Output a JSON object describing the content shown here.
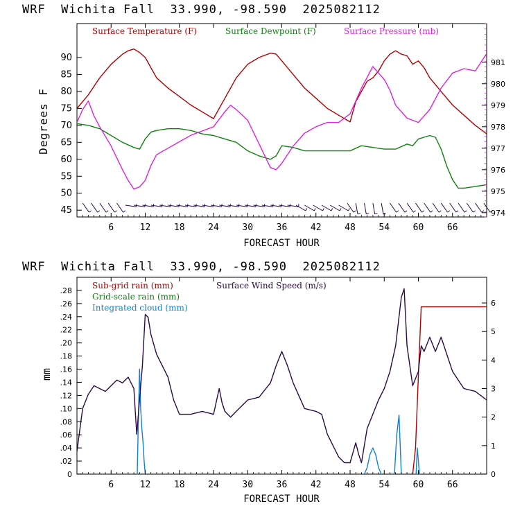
{
  "panels": {
    "top": {
      "title": "WRF  Wichita Fall  33.990, -98.590  2025082112",
      "xlabel": "FORECAST HOUR",
      "ylabel": "Degrees F"
    },
    "bottom": {
      "title": "WRF  Wichita Fall  33.990, -98.590  2025082112",
      "xlabel": "FORECAST HOUR",
      "ylabel": "mm"
    }
  },
  "chart_data": [
    {
      "type": "line",
      "xlabel": "FORECAST HOUR",
      "ylabel": "Degrees F",
      "xlim": [
        0,
        72
      ],
      "ylim": [
        43,
        100
      ],
      "y2lim": [
        973.8,
        982.8
      ],
      "xticks": [
        6,
        12,
        18,
        24,
        30,
        36,
        42,
        48,
        54,
        60,
        66
      ],
      "yticks": [
        45,
        50,
        55,
        60,
        65,
        70,
        75,
        80,
        85,
        90
      ],
      "y2ticks": [
        974,
        975,
        976,
        977,
        978,
        979,
        980,
        981
      ],
      "legend_placement": "top",
      "grid": false,
      "series": [
        {
          "name": "Surface Temperature (F)",
          "color": "#b00000",
          "axis": "left",
          "x": [
            0,
            2,
            4,
            6,
            8,
            9,
            10,
            11,
            12,
            13,
            14,
            16,
            18,
            20,
            22,
            24,
            26,
            28,
            30,
            32,
            34,
            35,
            36,
            38,
            40,
            42,
            44,
            46,
            48,
            49,
            50,
            51,
            52,
            53,
            54,
            55,
            56,
            57,
            58,
            59,
            60,
            61,
            62,
            63,
            64,
            66,
            68,
            70,
            72
          ],
          "y": [
            75,
            79,
            84,
            88,
            91,
            92,
            92.5,
            91.5,
            90,
            87,
            84,
            81,
            78.5,
            76,
            74,
            72,
            78,
            84,
            88,
            90,
            91.3,
            91,
            89,
            85,
            81,
            78,
            75,
            73,
            71,
            77,
            80,
            83,
            84,
            86,
            89,
            91,
            92,
            91,
            90.5,
            88,
            89,
            87,
            84,
            82,
            80,
            76,
            73,
            70,
            67.5
          ]
        },
        {
          "name": "Surface Dewpoint (F)",
          "color": "#108010",
          "axis": "left",
          "x": [
            0,
            2,
            4,
            6,
            8,
            10,
            11,
            12,
            13,
            14,
            16,
            18,
            20,
            22,
            24,
            26,
            28,
            30,
            32,
            34,
            35,
            36,
            38,
            40,
            42,
            44,
            46,
            48,
            50,
            52,
            54,
            56,
            58,
            59,
            60,
            62,
            63,
            64,
            65,
            66,
            67,
            68,
            70,
            72
          ],
          "y": [
            70.5,
            70,
            69,
            67,
            65,
            63.5,
            63,
            66,
            68,
            68.5,
            69,
            69,
            68.5,
            67.5,
            67,
            66,
            65,
            62.5,
            61,
            60,
            61,
            64,
            63.5,
            62.5,
            62.5,
            62.5,
            62.5,
            62.5,
            64,
            63.5,
            63,
            63,
            64.5,
            64,
            66,
            67,
            66.5,
            63,
            58,
            54,
            51.5,
            51.5,
            52,
            52.5
          ]
        },
        {
          "name": "Surface Pressure (mb)",
          "color": "#e020e0",
          "axis": "right",
          "x": [
            0,
            1,
            2,
            3,
            4,
            6,
            8,
            9,
            10,
            11,
            12,
            13,
            14,
            16,
            18,
            20,
            22,
            24,
            26,
            27,
            28,
            30,
            32,
            34,
            35,
            36,
            38,
            40,
            42,
            44,
            46,
            48,
            49,
            50,
            51,
            52,
            53,
            54,
            55,
            56,
            58,
            60,
            61,
            62,
            64,
            66,
            68,
            70,
            72
          ],
          "y": [
            978.2,
            978.8,
            979.2,
            978.5,
            978.0,
            977.1,
            976.0,
            975.5,
            975.1,
            975.2,
            975.5,
            976.2,
            976.7,
            977.0,
            977.3,
            977.6,
            977.8,
            978.0,
            978.7,
            979.0,
            978.8,
            978.3,
            977.2,
            976.1,
            976.0,
            976.3,
            977.1,
            977.7,
            978.0,
            978.2,
            978.2,
            978.6,
            979.2,
            979.8,
            980.3,
            980.8,
            980.5,
            980.2,
            979.7,
            979.0,
            978.4,
            978.2,
            978.5,
            978.8,
            979.8,
            980.5,
            980.7,
            980.6,
            981.4
          ]
        }
      ]
    },
    {
      "type": "line",
      "xlabel": "FORECAST HOUR",
      "ylabel": "mm",
      "xlim": [
        0,
        72
      ],
      "ylim": [
        0,
        0.3
      ],
      "y2lim": [
        0,
        6.9
      ],
      "xticks": [
        6,
        12,
        18,
        24,
        30,
        36,
        42,
        48,
        54,
        60,
        66
      ],
      "yticks": [
        0,
        0.02,
        0.04,
        0.06,
        0.08,
        0.1,
        0.12,
        0.14,
        0.16,
        0.18,
        0.2,
        0.22,
        0.24,
        0.26,
        0.28
      ],
      "ytick_labels": [
        "0",
        ".02",
        ".04",
        ".06",
        ".08",
        ".10",
        ".12",
        ".14",
        ".16",
        ".18",
        ".20",
        ".22",
        ".24",
        ".26",
        ".28"
      ],
      "y2ticks": [
        0,
        1,
        2,
        3,
        4,
        5,
        6
      ],
      "legend_placement": "top-left",
      "grid": false,
      "series": [
        {
          "name": "Sub-grid rain (mm)",
          "color": "#b00000",
          "axis": "left",
          "x": [
            0,
            59,
            59.5,
            60,
            60.5,
            72
          ],
          "y": [
            0,
            0,
            0.04,
            0.15,
            0.255,
            0.255
          ]
        },
        {
          "name": "Grid-scale rain (mm)",
          "color": "#108010",
          "axis": "left",
          "x": [
            0,
            72
          ],
          "y": [
            0,
            0
          ]
        },
        {
          "name": "Integrated cloud (mm)",
          "color": "#1080d0",
          "axis": "left",
          "x": [
            0,
            10.6,
            10.8,
            11,
            11.2,
            11.4,
            11.6,
            11.8,
            12,
            50.5,
            51,
            51.5,
            52,
            52.5,
            53,
            53.5,
            55.8,
            56.2,
            56.6,
            57,
            59.6,
            59.8,
            60.2,
            72
          ],
          "y": [
            0,
            0,
            0.09,
            0.16,
            0.1,
            0.07,
            0.05,
            0.02,
            0,
            0,
            0.01,
            0.03,
            0.04,
            0.03,
            0.01,
            0,
            0,
            0.06,
            0.09,
            0,
            0,
            0.04,
            0,
            0
          ]
        },
        {
          "name": "Surface Wind Speed (m/s)",
          "color": "#2a0a44",
          "axis": "right",
          "x": [
            0,
            1,
            2,
            3,
            4,
            5,
            6,
            7,
            8,
            9,
            10,
            10.5,
            11,
            11.5,
            12,
            12.5,
            13,
            14,
            15,
            16,
            17,
            18,
            20,
            22,
            24,
            25,
            25.5,
            26,
            27,
            28,
            30,
            32,
            34,
            35,
            36,
            37,
            38,
            40,
            42,
            43,
            44,
            45,
            46,
            47,
            48,
            49,
            49.5,
            50,
            51,
            52,
            53,
            54,
            55,
            56,
            57,
            57.5,
            58,
            59,
            60,
            60.5,
            61,
            62,
            63,
            64,
            65,
            66,
            67,
            68,
            70,
            72
          ],
          "y": [
            0.8,
            2.3,
            2.8,
            3.1,
            3.0,
            2.9,
            3.1,
            3.3,
            3.2,
            3.4,
            3.0,
            1.4,
            2.6,
            3.8,
            5.6,
            5.5,
            4.9,
            4.2,
            3.8,
            3.4,
            2.6,
            2.1,
            2.1,
            2.2,
            2.1,
            3.0,
            2.5,
            2.2,
            2.0,
            2.2,
            2.6,
            2.7,
            3.2,
            3.8,
            4.3,
            3.8,
            3.2,
            2.3,
            2.2,
            2.1,
            1.4,
            1.0,
            0.6,
            0.4,
            0.4,
            1.1,
            0.7,
            0.4,
            1.6,
            2.1,
            2.6,
            3.0,
            3.6,
            4.5,
            6.2,
            6.5,
            4.5,
            3.1,
            3.6,
            4.5,
            4.3,
            4.8,
            4.3,
            4.8,
            4.2,
            3.6,
            3.3,
            3.0,
            2.9,
            2.6
          ]
        }
      ]
    }
  ]
}
